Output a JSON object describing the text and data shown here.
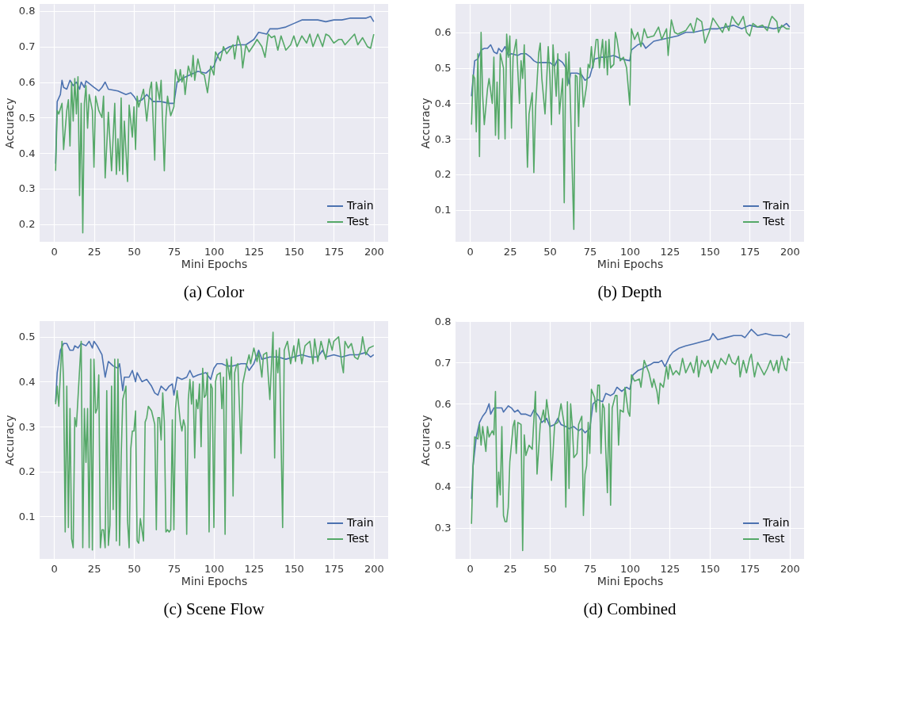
{
  "chart_data": [
    {
      "type": "line",
      "title": "(a) Color",
      "xlabel": "Mini Epochs",
      "ylabel": "Accuracy",
      "xlim": [
        -9,
        209
      ],
      "xticks": [
        0,
        25,
        50,
        75,
        100,
        125,
        150,
        175,
        200
      ],
      "ylim": [
        0.15,
        0.82
      ],
      "yticks": [
        0.2,
        0.3,
        0.4,
        0.5,
        0.6,
        0.7,
        0.8
      ],
      "grid": true,
      "legend": "bottom right",
      "line_style": "solid",
      "series": [
        {
          "name": "Train",
          "color": "#4c72b0",
          "x": [
            1,
            2,
            4,
            5,
            6,
            8,
            10,
            12,
            14,
            16,
            17,
            19,
            20,
            25,
            28,
            30,
            32,
            34,
            40,
            45,
            48,
            50,
            52,
            55,
            58,
            62,
            67,
            72,
            75,
            77,
            80,
            85,
            90,
            95,
            100,
            103,
            106,
            110,
            115,
            120,
            125,
            128,
            133,
            135,
            140,
            145,
            150,
            155,
            160,
            165,
            170,
            175,
            180,
            185,
            190,
            195,
            198,
            200
          ],
          "values": [
            0.37,
            0.545,
            0.565,
            0.605,
            0.585,
            0.58,
            0.605,
            0.59,
            0.6,
            0.58,
            0.6,
            0.585,
            0.603,
            0.585,
            0.575,
            0.585,
            0.6,
            0.58,
            0.575,
            0.565,
            0.57,
            0.56,
            0.545,
            0.55,
            0.565,
            0.545,
            0.545,
            0.54,
            0.54,
            0.6,
            0.61,
            0.62,
            0.63,
            0.625,
            0.645,
            0.68,
            0.69,
            0.7,
            0.705,
            0.705,
            0.72,
            0.74,
            0.735,
            0.75,
            0.75,
            0.755,
            0.765,
            0.775,
            0.775,
            0.775,
            0.77,
            0.775,
            0.775,
            0.78,
            0.78,
            0.78,
            0.785,
            0.77
          ]
        },
        {
          "name": "Test",
          "color": "#55a868",
          "x": [
            1,
            2,
            3,
            5,
            6,
            8,
            9,
            10,
            11,
            12,
            13,
            14,
            15,
            16,
            17,
            18,
            19,
            20,
            21,
            22,
            24,
            25,
            26,
            28,
            30,
            31,
            32,
            34,
            36,
            38,
            39,
            40,
            41,
            42,
            43,
            44,
            46,
            47,
            49,
            50,
            51,
            52,
            53,
            56,
            58,
            60,
            61,
            63,
            64,
            66,
            67,
            69,
            70,
            71,
            73,
            75,
            76,
            78,
            79,
            80,
            81,
            82,
            84,
            86,
            87,
            88,
            90,
            92,
            94,
            96,
            98,
            100,
            101,
            104,
            106,
            108,
            112,
            113,
            115,
            117,
            118,
            120,
            122,
            125,
            127,
            130,
            132,
            134,
            136,
            138,
            140,
            142,
            145,
            148,
            150,
            152,
            155,
            158,
            160,
            162,
            165,
            168,
            170,
            172,
            175,
            178,
            180,
            182,
            185,
            188,
            190,
            193,
            196,
            198,
            200
          ],
          "values": [
            0.35,
            0.52,
            0.51,
            0.54,
            0.41,
            0.52,
            0.55,
            0.42,
            0.6,
            0.49,
            0.61,
            0.51,
            0.615,
            0.28,
            0.54,
            0.175,
            0.54,
            0.59,
            0.47,
            0.565,
            0.52,
            0.36,
            0.56,
            0.52,
            0.5,
            0.56,
            0.33,
            0.515,
            0.35,
            0.54,
            0.34,
            0.44,
            0.35,
            0.555,
            0.34,
            0.49,
            0.32,
            0.535,
            0.445,
            0.53,
            0.41,
            0.56,
            0.53,
            0.58,
            0.49,
            0.58,
            0.6,
            0.38,
            0.6,
            0.55,
            0.605,
            0.35,
            0.5,
            0.56,
            0.505,
            0.53,
            0.635,
            0.6,
            0.635,
            0.6,
            0.62,
            0.565,
            0.645,
            0.615,
            0.675,
            0.605,
            0.665,
            0.625,
            0.62,
            0.57,
            0.645,
            0.62,
            0.685,
            0.66,
            0.7,
            0.68,
            0.705,
            0.665,
            0.73,
            0.7,
            0.64,
            0.705,
            0.685,
            0.705,
            0.72,
            0.7,
            0.67,
            0.735,
            0.725,
            0.73,
            0.69,
            0.73,
            0.69,
            0.705,
            0.73,
            0.7,
            0.73,
            0.71,
            0.735,
            0.7,
            0.735,
            0.7,
            0.735,
            0.73,
            0.71,
            0.72,
            0.72,
            0.705,
            0.72,
            0.735,
            0.705,
            0.725,
            0.7,
            0.695,
            0.735
          ]
        }
      ]
    },
    {
      "type": "line",
      "title": "(b) Depth",
      "xlabel": "Mini Epochs",
      "ylabel": "Accuracy",
      "xlim": [
        -9,
        209
      ],
      "xticks": [
        0,
        25,
        50,
        75,
        100,
        125,
        150,
        175,
        200
      ],
      "ylim": [
        0.01,
        0.68
      ],
      "yticks": [
        0.1,
        0.2,
        0.3,
        0.4,
        0.5,
        0.6
      ],
      "grid": true,
      "legend": "bottom right",
      "line_style": "solid",
      "series": [
        {
          "name": "Train",
          "color": "#4c72b0",
          "x": [
            1,
            3,
            5,
            7,
            9,
            11,
            13,
            15,
            17,
            18,
            20,
            22,
            24,
            26,
            30,
            32,
            35,
            38,
            40,
            42,
            45,
            50,
            53,
            55,
            58,
            60,
            62,
            63,
            67,
            70,
            72,
            75,
            78,
            82,
            85,
            90,
            95,
            100,
            101,
            105,
            108,
            110,
            115,
            120,
            125,
            130,
            135,
            140,
            145,
            150,
            155,
            160,
            165,
            170,
            175,
            180,
            185,
            190,
            195,
            198,
            200
          ],
          "values": [
            0.42,
            0.52,
            0.525,
            0.55,
            0.555,
            0.555,
            0.565,
            0.545,
            0.54,
            0.555,
            0.545,
            0.56,
            0.535,
            0.54,
            0.535,
            0.54,
            0.54,
            0.53,
            0.52,
            0.515,
            0.515,
            0.515,
            0.505,
            0.525,
            0.515,
            0.5,
            0.455,
            0.485,
            0.485,
            0.48,
            0.465,
            0.475,
            0.525,
            0.53,
            0.53,
            0.535,
            0.525,
            0.52,
            0.55,
            0.565,
            0.57,
            0.555,
            0.575,
            0.58,
            0.585,
            0.59,
            0.6,
            0.6,
            0.605,
            0.61,
            0.61,
            0.615,
            0.62,
            0.61,
            0.62,
            0.615,
            0.615,
            0.61,
            0.615,
            0.625,
            0.615
          ]
        },
        {
          "name": "Test",
          "color": "#55a868",
          "x": [
            1,
            2,
            3,
            4,
            5,
            6,
            7,
            8,
            9,
            11,
            12,
            14,
            15,
            16,
            17,
            18,
            19,
            21,
            22,
            23,
            24,
            25,
            26,
            27,
            29,
            31,
            32,
            33,
            34,
            36,
            37,
            39,
            40,
            41,
            43,
            44,
            45,
            47,
            49,
            50,
            51,
            52,
            54,
            55,
            56,
            58,
            59,
            60,
            61,
            62,
            65,
            66,
            67,
            68,
            69,
            70,
            71,
            73,
            74,
            75,
            76,
            77,
            79,
            80,
            81,
            83,
            84,
            85,
            86,
            87,
            88,
            90,
            91,
            92,
            94,
            96,
            98,
            100,
            101,
            103,
            105,
            107,
            109,
            111,
            115,
            118,
            120,
            123,
            124,
            126,
            128,
            130,
            135,
            138,
            140,
            142,
            145,
            147,
            150,
            152,
            155,
            158,
            160,
            162,
            164,
            166,
            168,
            171,
            173,
            175,
            177,
            180,
            183,
            186,
            188,
            189,
            192,
            193,
            195,
            198,
            200
          ],
          "values": [
            0.34,
            0.48,
            0.47,
            0.32,
            0.54,
            0.25,
            0.6,
            0.42,
            0.34,
            0.44,
            0.47,
            0.4,
            0.53,
            0.31,
            0.46,
            0.3,
            0.54,
            0.5,
            0.3,
            0.595,
            0.53,
            0.59,
            0.33,
            0.53,
            0.58,
            0.4,
            0.52,
            0.47,
            0.565,
            0.22,
            0.37,
            0.43,
            0.205,
            0.38,
            0.54,
            0.57,
            0.47,
            0.37,
            0.56,
            0.48,
            0.34,
            0.565,
            0.42,
            0.54,
            0.37,
            0.47,
            0.12,
            0.54,
            0.45,
            0.545,
            0.045,
            0.48,
            0.475,
            0.335,
            0.5,
            0.47,
            0.39,
            0.45,
            0.51,
            0.5,
            0.56,
            0.5,
            0.58,
            0.58,
            0.5,
            0.58,
            0.5,
            0.575,
            0.48,
            0.58,
            0.5,
            0.51,
            0.6,
            0.58,
            0.52,
            0.53,
            0.5,
            0.395,
            0.61,
            0.58,
            0.6,
            0.56,
            0.61,
            0.585,
            0.59,
            0.615,
            0.58,
            0.61,
            0.535,
            0.635,
            0.6,
            0.595,
            0.605,
            0.625,
            0.6,
            0.64,
            0.63,
            0.57,
            0.605,
            0.64,
            0.62,
            0.6,
            0.625,
            0.605,
            0.645,
            0.63,
            0.62,
            0.645,
            0.6,
            0.59,
            0.625,
            0.615,
            0.62,
            0.605,
            0.635,
            0.645,
            0.63,
            0.6,
            0.62,
            0.61,
            0.61
          ]
        }
      ]
    },
    {
      "type": "line",
      "title": "(c) Scene Flow",
      "xlabel": "Mini Epochs",
      "ylabel": "Accuracy",
      "xlim": [
        -9,
        209
      ],
      "xticks": [
        0,
        25,
        50,
        75,
        100,
        125,
        150,
        175,
        200
      ],
      "ylim": [
        0.005,
        0.535
      ],
      "yticks": [
        0.1,
        0.2,
        0.3,
        0.4,
        0.5
      ],
      "grid": true,
      "legend": "bottom right",
      "line_style": "solid",
      "series": [
        {
          "name": "Train",
          "color": "#4c72b0",
          "x": [
            1,
            2,
            4,
            6,
            8,
            10,
            12,
            13,
            15,
            17,
            20,
            22,
            24,
            25,
            27,
            30,
            32,
            34,
            37,
            40,
            41,
            43,
            44,
            47,
            49,
            51,
            52,
            55,
            58,
            61,
            63,
            65,
            67,
            70,
            72,
            74,
            75,
            77,
            80,
            83,
            85,
            87,
            90,
            95,
            98,
            100,
            102,
            105,
            108,
            112,
            117,
            120,
            122,
            125,
            128,
            130,
            135,
            140,
            145,
            150,
            155,
            160,
            165,
            168,
            170,
            175,
            180,
            185,
            190,
            195,
            198,
            200
          ],
          "values": [
            0.355,
            0.42,
            0.47,
            0.485,
            0.485,
            0.47,
            0.47,
            0.48,
            0.475,
            0.485,
            0.48,
            0.49,
            0.475,
            0.49,
            0.48,
            0.46,
            0.41,
            0.445,
            0.435,
            0.43,
            0.44,
            0.38,
            0.41,
            0.41,
            0.425,
            0.4,
            0.42,
            0.4,
            0.405,
            0.39,
            0.375,
            0.37,
            0.39,
            0.38,
            0.39,
            0.395,
            0.37,
            0.41,
            0.405,
            0.41,
            0.425,
            0.41,
            0.415,
            0.42,
            0.405,
            0.43,
            0.44,
            0.44,
            0.435,
            0.435,
            0.44,
            0.44,
            0.425,
            0.44,
            0.47,
            0.45,
            0.455,
            0.455,
            0.45,
            0.455,
            0.46,
            0.455,
            0.455,
            0.47,
            0.455,
            0.46,
            0.455,
            0.46,
            0.46,
            0.465,
            0.455,
            0.46
          ]
        },
        {
          "name": "Test",
          "color": "#55a868",
          "x": [
            1,
            2,
            3,
            5,
            6,
            7,
            8,
            9,
            10,
            11,
            12,
            13,
            14,
            17,
            18,
            19,
            20,
            21,
            22,
            23,
            24,
            25,
            26,
            27,
            28,
            29,
            30,
            31,
            32,
            33,
            34,
            35,
            36,
            37,
            38,
            39,
            40,
            41,
            42,
            43,
            45,
            46,
            47,
            48,
            49,
            50,
            51,
            52,
            53,
            54,
            56,
            57,
            58,
            59,
            61,
            63,
            64,
            65,
            66,
            67,
            68,
            69,
            70,
            71,
            72,
            73,
            74,
            75,
            76,
            77,
            79,
            80,
            81,
            82,
            83,
            84,
            85,
            86,
            87,
            88,
            89,
            90,
            91,
            92,
            93,
            94,
            95,
            96,
            97,
            98,
            99,
            100,
            101,
            102,
            104,
            105,
            106,
            107,
            108,
            109,
            110,
            111,
            112,
            113,
            114,
            115,
            117,
            118,
            120,
            122,
            123,
            125,
            127,
            128,
            130,
            131,
            133,
            135,
            137,
            138,
            139,
            140,
            141,
            143,
            144,
            146,
            148,
            150,
            151,
            153,
            155,
            157,
            160,
            162,
            163,
            165,
            167,
            170,
            172,
            174,
            175,
            178,
            180,
            181,
            182,
            184,
            186,
            188,
            190,
            192,
            193,
            195,
            197,
            200
          ],
          "values": [
            0.35,
            0.39,
            0.345,
            0.49,
            0.4,
            0.065,
            0.39,
            0.075,
            0.34,
            0.05,
            0.03,
            0.32,
            0.3,
            0.49,
            0.03,
            0.34,
            0.22,
            0.34,
            0.03,
            0.45,
            0.025,
            0.45,
            0.33,
            0.34,
            0.415,
            0.03,
            0.07,
            0.07,
            0.03,
            0.38,
            0.035,
            0.08,
            0.39,
            0.115,
            0.45,
            0.045,
            0.45,
            0.035,
            0.23,
            0.36,
            0.39,
            0.09,
            0.03,
            0.25,
            0.29,
            0.29,
            0.335,
            0.045,
            0.04,
            0.095,
            0.045,
            0.31,
            0.32,
            0.345,
            0.335,
            0.305,
            0.07,
            0.32,
            0.32,
            0.27,
            0.375,
            0.31,
            0.065,
            0.07,
            0.065,
            0.07,
            0.315,
            0.07,
            0.34,
            0.38,
            0.31,
            0.29,
            0.315,
            0.3,
            0.06,
            0.36,
            0.405,
            0.35,
            0.4,
            0.23,
            0.36,
            0.34,
            0.395,
            0.255,
            0.43,
            0.365,
            0.37,
            0.42,
            0.065,
            0.395,
            0.385,
            0.075,
            0.4,
            0.415,
            0.42,
            0.34,
            0.41,
            0.06,
            0.45,
            0.43,
            0.405,
            0.455,
            0.145,
            0.42,
            0.435,
            0.44,
            0.24,
            0.395,
            0.43,
            0.46,
            0.44,
            0.475,
            0.445,
            0.465,
            0.41,
            0.46,
            0.465,
            0.36,
            0.51,
            0.23,
            0.47,
            0.42,
            0.475,
            0.075,
            0.47,
            0.49,
            0.44,
            0.48,
            0.445,
            0.495,
            0.44,
            0.48,
            0.49,
            0.44,
            0.495,
            0.445,
            0.49,
            0.45,
            0.495,
            0.47,
            0.49,
            0.5,
            0.44,
            0.42,
            0.49,
            0.475,
            0.485,
            0.455,
            0.45,
            0.47,
            0.5,
            0.46,
            0.475,
            0.48
          ]
        }
      ]
    },
    {
      "type": "line",
      "title": "(d) Combined",
      "xlabel": "Mini Epochs",
      "ylabel": "Accuracy",
      "xlim": [
        -9,
        209
      ],
      "xticks": [
        0,
        25,
        50,
        75,
        100,
        125,
        150,
        175,
        200
      ],
      "ylim": [
        0.225,
        0.8
      ],
      "yticks": [
        0.3,
        0.4,
        0.5,
        0.6,
        0.7,
        0.8
      ],
      "grid": true,
      "legend": "bottom right",
      "line_style": "solid",
      "series": [
        {
          "name": "Train",
          "color": "#4c72b0",
          "x": [
            1,
            2,
            4,
            6,
            8,
            10,
            12,
            13,
            15,
            18,
            20,
            21,
            24,
            26,
            28,
            30,
            32,
            35,
            38,
            40,
            43,
            45,
            48,
            50,
            53,
            55,
            57,
            60,
            62,
            65,
            68,
            70,
            72,
            75,
            77,
            80,
            83,
            85,
            88,
            90,
            92,
            95,
            98,
            100,
            102,
            105,
            108,
            110,
            113,
            115,
            118,
            120,
            122,
            125,
            127,
            129,
            131,
            135,
            140,
            145,
            150,
            152,
            155,
            160,
            165,
            170,
            172,
            176,
            180,
            185,
            190,
            195,
            198,
            200
          ],
          "values": [
            0.37,
            0.45,
            0.52,
            0.555,
            0.57,
            0.58,
            0.6,
            0.575,
            0.59,
            0.59,
            0.59,
            0.58,
            0.595,
            0.59,
            0.58,
            0.585,
            0.575,
            0.575,
            0.57,
            0.585,
            0.57,
            0.555,
            0.565,
            0.545,
            0.55,
            0.565,
            0.55,
            0.545,
            0.54,
            0.545,
            0.535,
            0.54,
            0.53,
            0.54,
            0.6,
            0.61,
            0.605,
            0.625,
            0.62,
            0.625,
            0.64,
            0.63,
            0.64,
            0.635,
            0.67,
            0.68,
            0.685,
            0.69,
            0.695,
            0.7,
            0.7,
            0.705,
            0.69,
            0.715,
            0.725,
            0.73,
            0.735,
            0.74,
            0.745,
            0.75,
            0.755,
            0.77,
            0.755,
            0.76,
            0.765,
            0.765,
            0.76,
            0.78,
            0.765,
            0.77,
            0.765,
            0.765,
            0.76,
            0.77
          ]
        },
        {
          "name": "Test",
          "color": "#55a868",
          "x": [
            1,
            2,
            3,
            5,
            6,
            7,
            8,
            10,
            11,
            12,
            14,
            15,
            16,
            17,
            18,
            19,
            20,
            21,
            22,
            23,
            24,
            25,
            27,
            28,
            29,
            30,
            32,
            33,
            34,
            35,
            37,
            39,
            41,
            42,
            44,
            46,
            47,
            48,
            50,
            51,
            53,
            55,
            57,
            59,
            60,
            61,
            62,
            63,
            64,
            65,
            67,
            68,
            70,
            71,
            72,
            73,
            74,
            75,
            76,
            78,
            79,
            80,
            81,
            82,
            83,
            84,
            86,
            87,
            88,
            89,
            91,
            92,
            93,
            94,
            96,
            97,
            99,
            100,
            101,
            103,
            106,
            107,
            109,
            111,
            112,
            114,
            115,
            117,
            118,
            119,
            121,
            123,
            124,
            125,
            127,
            129,
            131,
            133,
            135,
            138,
            140,
            142,
            143,
            145,
            147,
            149,
            151,
            153,
            155,
            157,
            160,
            162,
            164,
            166,
            168,
            169,
            171,
            173,
            175,
            176,
            178,
            180,
            182,
            184,
            186,
            188,
            190,
            192,
            193,
            195,
            197,
            198,
            199,
            200
          ],
          "values": [
            0.31,
            0.45,
            0.52,
            0.515,
            0.55,
            0.5,
            0.545,
            0.485,
            0.545,
            0.52,
            0.535,
            0.525,
            0.63,
            0.35,
            0.435,
            0.38,
            0.545,
            0.33,
            0.315,
            0.315,
            0.35,
            0.46,
            0.545,
            0.56,
            0.48,
            0.555,
            0.55,
            0.245,
            0.525,
            0.475,
            0.5,
            0.49,
            0.63,
            0.43,
            0.55,
            0.585,
            0.555,
            0.61,
            0.55,
            0.415,
            0.55,
            0.555,
            0.6,
            0.55,
            0.35,
            0.605,
            0.395,
            0.6,
            0.55,
            0.47,
            0.48,
            0.55,
            0.57,
            0.33,
            0.43,
            0.45,
            0.555,
            0.48,
            0.635,
            0.615,
            0.58,
            0.645,
            0.645,
            0.48,
            0.6,
            0.59,
            0.385,
            0.6,
            0.355,
            0.59,
            0.62,
            0.62,
            0.5,
            0.585,
            0.58,
            0.64,
            0.58,
            0.57,
            0.67,
            0.655,
            0.66,
            0.64,
            0.705,
            0.685,
            0.675,
            0.64,
            0.66,
            0.63,
            0.6,
            0.65,
            0.64,
            0.69,
            0.66,
            0.695,
            0.67,
            0.68,
            0.67,
            0.71,
            0.675,
            0.7,
            0.675,
            0.715,
            0.665,
            0.705,
            0.69,
            0.705,
            0.675,
            0.705,
            0.685,
            0.71,
            0.695,
            0.72,
            0.7,
            0.695,
            0.715,
            0.665,
            0.705,
            0.675,
            0.71,
            0.72,
            0.665,
            0.7,
            0.685,
            0.67,
            0.685,
            0.705,
            0.68,
            0.705,
            0.675,
            0.715,
            0.685,
            0.68,
            0.71,
            0.705
          ]
        }
      ]
    }
  ]
}
